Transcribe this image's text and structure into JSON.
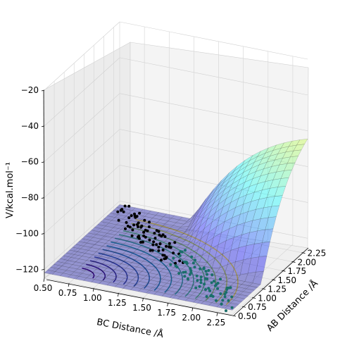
{
  "chart_data": {
    "type": "surface3d",
    "zlabel": "V/kcal.mol⁻¹",
    "xlabel": "BC Distance /Å",
    "ylabel": "AB Distance /Å",
    "z_ticks": [
      "−20",
      "−40",
      "−60",
      "−80",
      "−100",
      "−120"
    ],
    "bc_ticks": [
      "0.50",
      "0.75",
      "1.00",
      "1.25",
      "1.50",
      "1.75",
      "2.00",
      "2.25"
    ],
    "ab_ticks": [
      "0.50",
      "0.75",
      "1.00",
      "1.25",
      "1.50",
      "1.75",
      "2.00",
      "2.25"
    ],
    "zlim": [
      -125,
      -20
    ],
    "xlim": [
      0.5,
      2.4
    ],
    "ylim": [
      0.5,
      2.4
    ],
    "colormap_surface": "jet",
    "colormap_contours": "viridis",
    "trajectory_color": "black-to-teal",
    "colors": {
      "pane": "#f2f2f2",
      "grid": "#cccccc",
      "points_start": "#000000",
      "points_end": "#1a6e6a"
    }
  }
}
